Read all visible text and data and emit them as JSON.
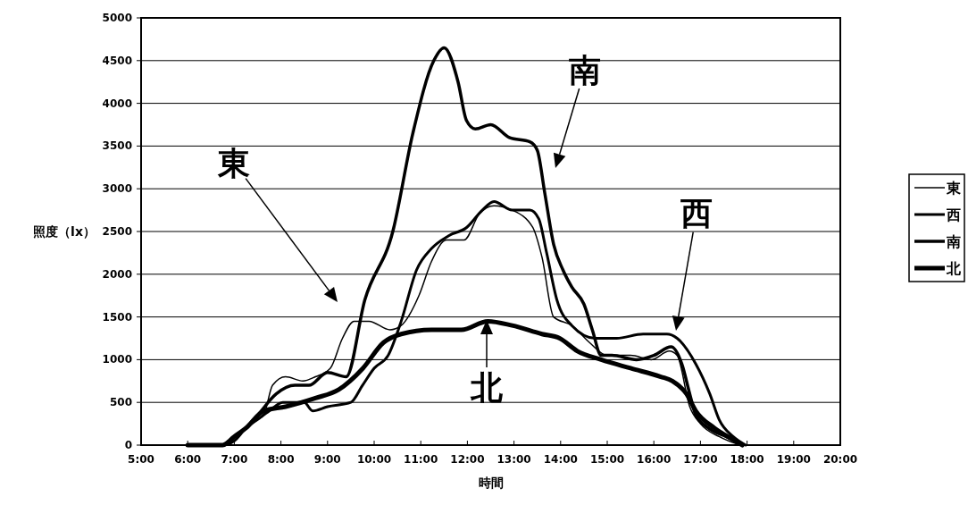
{
  "chart_data": {
    "type": "line",
    "xlabel": "時間",
    "ylabel": "照度（lx）",
    "xlim": [
      5,
      20
    ],
    "ylim": [
      0,
      5000
    ],
    "xticks": [
      {
        "value": 5,
        "label": "5:00"
      },
      {
        "value": 6,
        "label": "6:00"
      },
      {
        "value": 7,
        "label": "7:00"
      },
      {
        "value": 8,
        "label": "8:00"
      },
      {
        "value": 9,
        "label": "9:00"
      },
      {
        "value": 10,
        "label": "10:00"
      },
      {
        "value": 11,
        "label": "11:00"
      },
      {
        "value": 12,
        "label": "12:00"
      },
      {
        "value": 13,
        "label": "13:00"
      },
      {
        "value": 14,
        "label": "14:00"
      },
      {
        "value": 15,
        "label": "15:00"
      },
      {
        "value": 16,
        "label": "16:00"
      },
      {
        "value": 17,
        "label": "17:00"
      },
      {
        "value": 18,
        "label": "18:00"
      },
      {
        "value": 19,
        "label": "19:00"
      },
      {
        "value": 20,
        "label": "20:00"
      }
    ],
    "yticks": [
      0,
      500,
      1000,
      1500,
      2000,
      2500,
      3000,
      3500,
      4000,
      4500,
      5000
    ],
    "grid": "y",
    "legend": "right",
    "marker": "none",
    "line_style": "solid",
    "series": [
      {
        "name": "東",
        "color": "#000000",
        "x": [
          6,
          6.75,
          7,
          7.25,
          7.5,
          7.63,
          7.82,
          8.1,
          8.47,
          8.74,
          9.06,
          9.32,
          9.57,
          9.89,
          10.34,
          10.58,
          10.96,
          11.23,
          11.55,
          11.93,
          12.25,
          12.57,
          12.96,
          13.4,
          13.6,
          13.85,
          14.24,
          14.62,
          15,
          15.5,
          15.95,
          16.33,
          16.5,
          16.77,
          17,
          17.4,
          17.85
        ],
        "values": [
          0,
          0,
          100,
          200,
          300,
          350,
          700,
          800,
          750,
          800,
          900,
          1250,
          1450,
          1450,
          1350,
          1400,
          1750,
          2150,
          2400,
          2400,
          2700,
          2800,
          2750,
          2550,
          2200,
          1500,
          1400,
          1200,
          1050,
          1050,
          1000,
          1100,
          1050,
          450,
          250,
          100,
          0
        ]
      },
      {
        "name": "西",
        "color": "#000000",
        "x": [
          6,
          6.75,
          7,
          7.25,
          7.5,
          7.75,
          8.04,
          8.5,
          8.68,
          9,
          9.5,
          9.75,
          10,
          10.3,
          10.58,
          10.91,
          11.23,
          11.6,
          11.99,
          12.32,
          12.57,
          12.96,
          13.34,
          13.53,
          13.7,
          13.92,
          14.24,
          14.75,
          15.2,
          15.77,
          16.28,
          16.5,
          16.9,
          17.2,
          17.4,
          17.7,
          17.97
        ],
        "values": [
          0,
          0,
          50,
          200,
          300,
          400,
          500,
          500,
          400,
          450,
          500,
          700,
          900,
          1050,
          1450,
          2050,
          2300,
          2450,
          2550,
          2750,
          2850,
          2750,
          2750,
          2650,
          2250,
          1700,
          1400,
          1250,
          1250,
          1300,
          1300,
          1250,
          950,
          600,
          300,
          100,
          0
        ]
      },
      {
        "name": "南",
        "color": "#000000",
        "x": [
          6,
          6.75,
          7,
          7.25,
          7.5,
          7.9,
          8.3,
          8.6,
          9,
          9.4,
          9.8,
          10.4,
          10.83,
          11.28,
          11.5,
          11.8,
          11.98,
          12.17,
          12.5,
          12.9,
          13.34,
          13.5,
          13.66,
          13.85,
          14.05,
          14.24,
          14.5,
          14.68,
          14.87,
          15.1,
          15.63,
          16,
          16.37,
          16.6,
          16.77,
          16.9,
          17.17,
          17.55,
          17.9
        ],
        "values": [
          0,
          0,
          100,
          200,
          350,
          600,
          700,
          700,
          850,
          800,
          1700,
          2500,
          3650,
          4500,
          4650,
          4250,
          3800,
          3700,
          3750,
          3600,
          3550,
          3450,
          2950,
          2350,
          2050,
          1850,
          1650,
          1350,
          1050,
          1050,
          1000,
          1050,
          1150,
          950,
          600,
          350,
          200,
          100,
          0
        ]
      },
      {
        "name": "北",
        "color": "#000000",
        "x": [
          6,
          6.75,
          7,
          7.25,
          7.63,
          8.1,
          8.74,
          9.24,
          9.76,
          10.2,
          10.58,
          11.23,
          11.87,
          12.44,
          12.96,
          13.6,
          13.98,
          14.36,
          14.87,
          15.5,
          16.15,
          16.4,
          16.7,
          16.9,
          17.3,
          17.75,
          17.9
        ],
        "values": [
          0,
          0,
          100,
          200,
          400,
          450,
          550,
          650,
          900,
          1200,
          1300,
          1350,
          1350,
          1450,
          1400,
          1300,
          1250,
          1100,
          1000,
          900,
          800,
          750,
          600,
          400,
          200,
          50,
          0
        ]
      }
    ],
    "annotations": [
      "東",
      "南",
      "西",
      "北"
    ]
  }
}
